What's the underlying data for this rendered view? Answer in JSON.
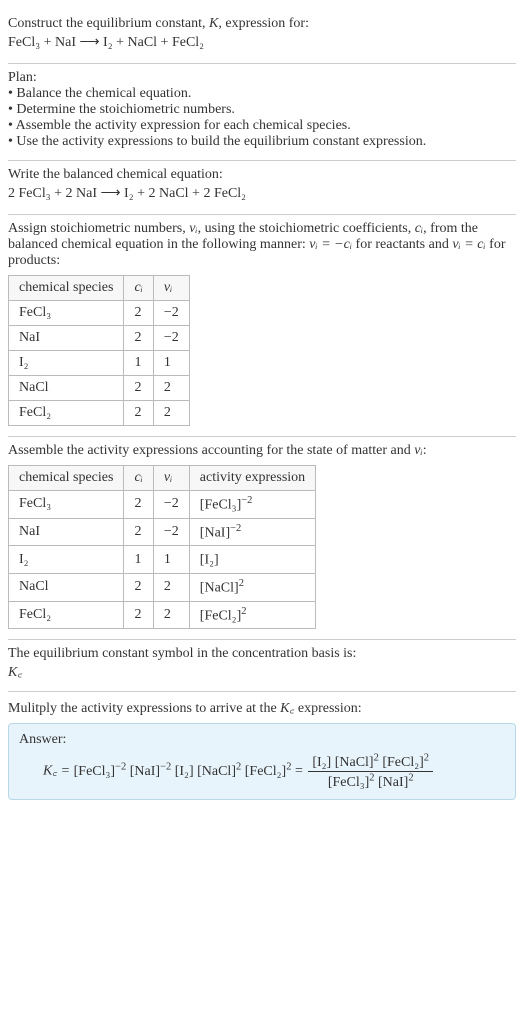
{
  "intro": {
    "line1": "Construct the equilibrium constant, ",
    "Ksym": "K",
    "line1b": ", expression for:",
    "equation_unbalanced": "FeCl₃ + NaI ⟶ I₂ + NaCl + FeCl₂"
  },
  "plan": {
    "heading": "Plan:",
    "items": [
      "• Balance the chemical equation.",
      "• Determine the stoichiometric numbers.",
      "• Assemble the activity expression for each chemical species.",
      "• Use the activity expressions to build the equilibrium constant expression."
    ]
  },
  "balanced": {
    "heading": "Write the balanced chemical equation:",
    "equation": "2 FeCl₃ + 2 NaI ⟶ I₂ + 2 NaCl + 2 FeCl₂"
  },
  "stoich": {
    "intro_a": "Assign stoichiometric numbers, ",
    "nu": "νᵢ",
    "intro_b": ", using the stoichiometric coefficients, ",
    "ci": "cᵢ",
    "intro_c": ", from the balanced chemical equation in the following manner: ",
    "rel1": "νᵢ = −cᵢ",
    "intro_d": " for reactants and ",
    "rel2": "νᵢ = cᵢ",
    "intro_e": " for products:",
    "table": {
      "headers": [
        "chemical species",
        "cᵢ",
        "νᵢ"
      ],
      "rows": [
        [
          "FeCl₃",
          "2",
          "−2"
        ],
        [
          "NaI",
          "2",
          "−2"
        ],
        [
          "I₂",
          "1",
          "1"
        ],
        [
          "NaCl",
          "2",
          "2"
        ],
        [
          "FeCl₂",
          "2",
          "2"
        ]
      ],
      "col_widths": [
        "140px",
        "40px",
        "40px"
      ]
    }
  },
  "activity": {
    "intro_a": "Assemble the activity expressions accounting for the state of matter and ",
    "nu": "νᵢ",
    "intro_b": ":",
    "table": {
      "headers": [
        "chemical species",
        "cᵢ",
        "νᵢ",
        "activity expression"
      ],
      "rows": [
        {
          "sp": "FeCl₃",
          "c": "2",
          "v": "−2",
          "base": "[FeCl₃]",
          "exp": "−2"
        },
        {
          "sp": "NaI",
          "c": "2",
          "v": "−2",
          "base": "[NaI]",
          "exp": "−2"
        },
        {
          "sp": "I₂",
          "c": "1",
          "v": "1",
          "base": "[I₂]",
          "exp": ""
        },
        {
          "sp": "NaCl",
          "c": "2",
          "v": "2",
          "base": "[NaCl]",
          "exp": "2"
        },
        {
          "sp": "FeCl₂",
          "c": "2",
          "v": "2",
          "base": "[FeCl₂]",
          "exp": "2"
        }
      ],
      "col_widths": [
        "140px",
        "40px",
        "40px",
        "150px"
      ]
    }
  },
  "kc_symbol": {
    "line1": "The equilibrium constant symbol in the concentration basis is:",
    "sym": "K꜀"
  },
  "multiply": {
    "line": "Mulitply the activity expressions to arrive at the ",
    "Kc": "K꜀",
    "line_b": " expression:"
  },
  "answer": {
    "label": "Answer:",
    "lhs": "K꜀ = ",
    "terms": [
      {
        "base": "[FeCl₃]",
        "exp": "−2"
      },
      {
        "base": "[NaI]",
        "exp": "−2"
      },
      {
        "base": "[I₂]",
        "exp": ""
      },
      {
        "base": "[NaCl]",
        "exp": "2"
      },
      {
        "base": "[FeCl₂]",
        "exp": "2"
      }
    ],
    "eq": " = ",
    "frac_num": [
      {
        "base": "[I₂]",
        "exp": ""
      },
      {
        "base": "[NaCl]",
        "exp": "2"
      },
      {
        "base": "[FeCl₂]",
        "exp": "2"
      }
    ],
    "frac_den": [
      {
        "base": "[FeCl₃]",
        "exp": "2"
      },
      {
        "base": "[NaI]",
        "exp": "2"
      }
    ]
  },
  "colors": {
    "answer_bg": "#e8f4fb",
    "answer_border": "#b8d8ea",
    "table_border": "#bbb",
    "hr": "#ccc"
  }
}
